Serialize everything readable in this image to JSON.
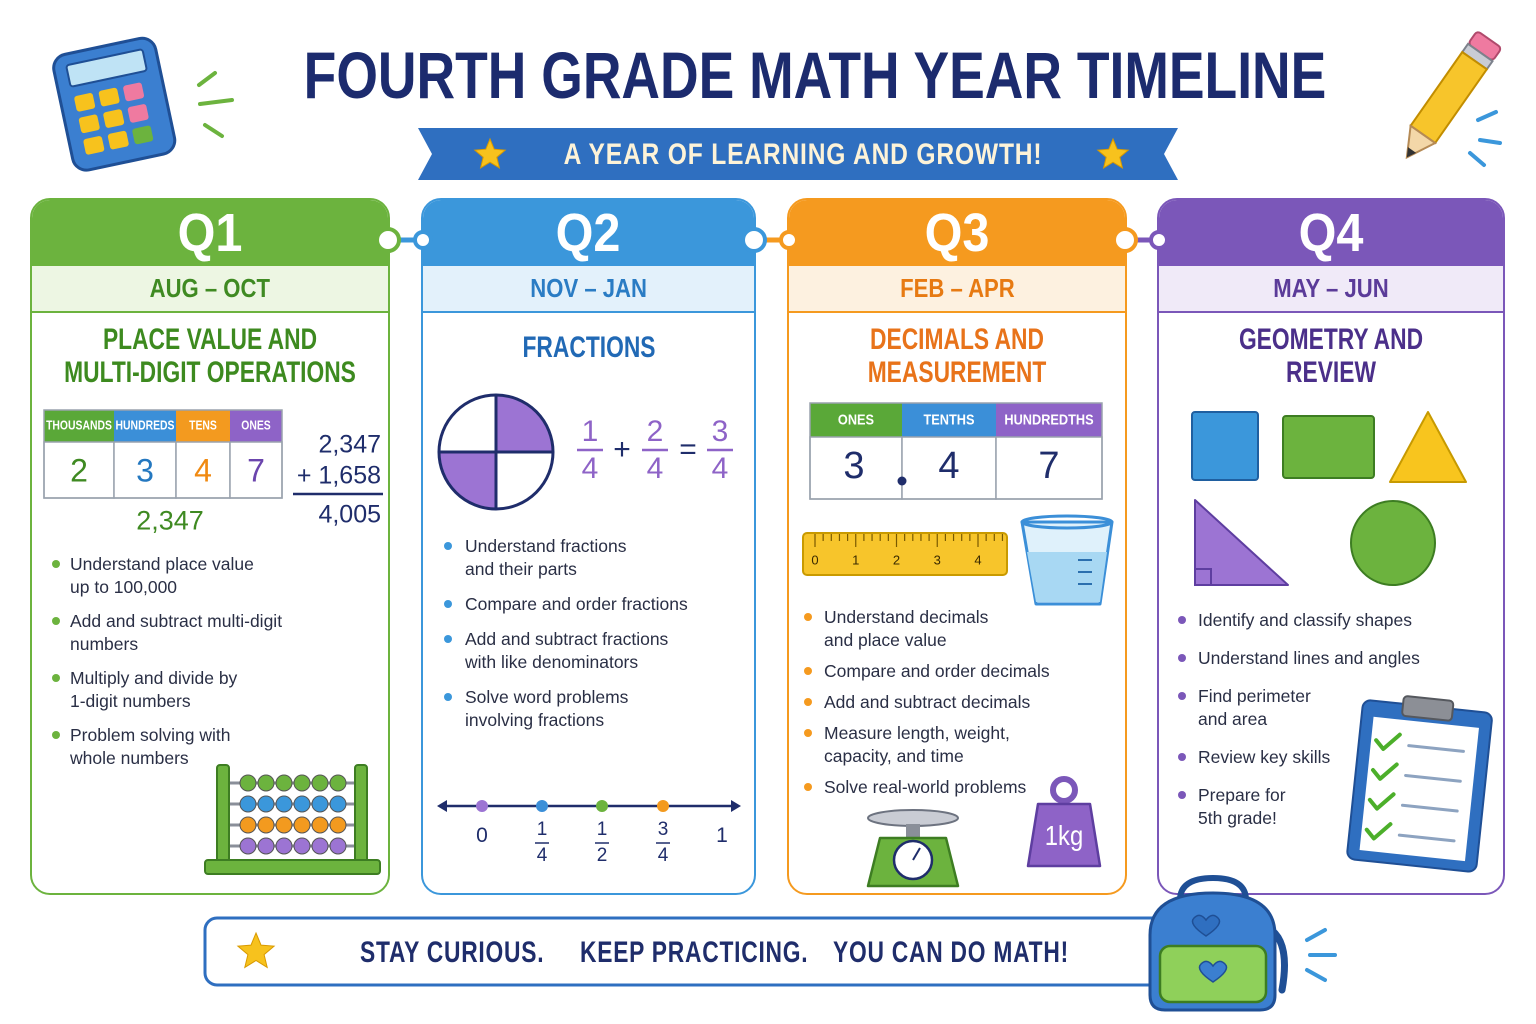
{
  "header": {
    "title": "FOURTH GRADE MATH YEAR TIMELINE",
    "subtitle": "A YEAR OF LEARNING AND GROWTH!"
  },
  "quarters": [
    {
      "label": "Q1",
      "months": "AUG – OCT",
      "topic": [
        "PLACE VALUE AND",
        "MULTI-DIGIT OPERATIONS"
      ],
      "bullets": [
        [
          "Understand place value",
          "up to 100,000"
        ],
        [
          "Add and subtract multi-digit",
          "numbers"
        ],
        [
          "Multiply and divide by",
          "1-digit numbers"
        ],
        [
          "Problem solving with",
          "whole numbers"
        ]
      ]
    },
    {
      "label": "Q2",
      "months": "NOV – JAN",
      "topic": [
        "FRACTIONS"
      ],
      "bullets": [
        [
          "Understand fractions",
          "and their parts"
        ],
        [
          "Compare and order fractions"
        ],
        [
          "Add and subtract fractions",
          "with like denominators"
        ],
        [
          "Solve word problems",
          "involving fractions"
        ]
      ]
    },
    {
      "label": "Q3",
      "months": "FEB – APR",
      "topic": [
        "DECIMALS AND",
        "MEASUREMENT"
      ],
      "bullets": [
        [
          "Understand decimals",
          "and place value"
        ],
        [
          "Compare and order decimals"
        ],
        [
          "Add and subtract decimals"
        ],
        [
          "Measure length, weight,",
          "capacity, and time"
        ],
        [
          "Solve real-world problems"
        ]
      ]
    },
    {
      "label": "Q4",
      "months": "MAY – JUN",
      "topic": [
        "GEOMETRY AND",
        "REVIEW"
      ],
      "bullets": [
        [
          "Identify and classify shapes"
        ],
        [
          "Understand lines and angles"
        ],
        [
          "Find perimeter",
          "and area"
        ],
        [
          "Review key skills"
        ],
        [
          "Prepare for",
          "5th grade!"
        ]
      ]
    }
  ],
  "place_value": {
    "headers": [
      "THOUSANDS",
      "HUNDREDS",
      "TENS",
      "ONES"
    ],
    "digits": [
      "2",
      "3",
      "4",
      "7"
    ],
    "number": "2,347"
  },
  "addition": {
    "lines": [
      "2,347",
      "+ 1,658"
    ],
    "sum": "4,005"
  },
  "fraction_equation": {
    "terms": [
      {
        "numerator": "1",
        "denominator": "4"
      },
      {
        "numerator": "2",
        "denominator": "4"
      },
      {
        "numerator": "3",
        "denominator": "4"
      }
    ],
    "operators": [
      "+",
      "="
    ]
  },
  "number_line": {
    "labels": [
      {
        "text": "0"
      },
      {
        "numerator": "1",
        "denominator": "4"
      },
      {
        "numerator": "1",
        "denominator": "2"
      },
      {
        "numerator": "3",
        "denominator": "4"
      },
      {
        "text": "1"
      }
    ]
  },
  "decimal_table": {
    "headers": [
      "ONES",
      "TENTHS",
      "HUNDREDTHS"
    ],
    "digits": [
      "3",
      "4",
      "7"
    ]
  },
  "ruler": {
    "labels": [
      "0",
      "1",
      "2",
      "3",
      "4"
    ]
  },
  "weight": {
    "label": "1kg"
  },
  "footer": {
    "phrases": [
      "STAY CURIOUS.",
      "KEEP PRACTICING.",
      "YOU CAN DO MATH!"
    ]
  }
}
